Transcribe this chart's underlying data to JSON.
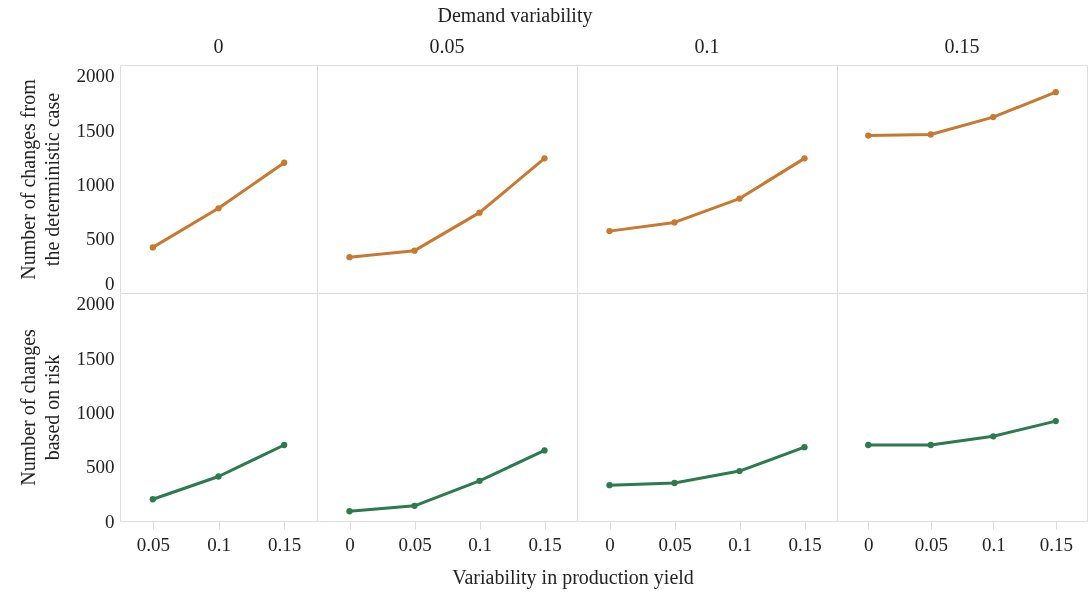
{
  "chart_data": [
    {
      "type": "line",
      "title": "0",
      "annotations": [
        "Demand variability"
      ],
      "ylabel": "Number of changes from\nthe deterministic case",
      "categories": [
        "0.05",
        "0.1",
        "0.15"
      ],
      "series": [
        {
          "color": "#c8782f",
          "values": [
            420,
            780,
            1200
          ]
        }
      ],
      "ylim": [
        0,
        2100
      ],
      "yticks": [
        0,
        500,
        1000,
        1500,
        2000
      ],
      "tick_labels": "y",
      "marker": "circle",
      "line_style": "solid"
    },
    {
      "type": "line",
      "title": "0.05",
      "categories": [
        "0",
        "0.05",
        "0.1",
        "0.15"
      ],
      "series": [
        {
          "color": "#c8782f",
          "values": [
            330,
            390,
            740,
            1240
          ]
        }
      ],
      "ylim": [
        0,
        2100
      ],
      "yticks": [
        0,
        500,
        1000,
        1500,
        2000
      ],
      "tick_labels": false,
      "marker": "circle",
      "line_style": "solid"
    },
    {
      "type": "line",
      "title": "0.1",
      "categories": [
        "0",
        "0.05",
        "0.1",
        "0.15"
      ],
      "series": [
        {
          "color": "#c8782f",
          "values": [
            570,
            650,
            870,
            1240
          ]
        }
      ],
      "ylim": [
        0,
        2100
      ],
      "yticks": [
        0,
        500,
        1000,
        1500,
        2000
      ],
      "tick_labels": false,
      "marker": "circle",
      "line_style": "solid"
    },
    {
      "type": "line",
      "title": "0.15",
      "categories": [
        "0",
        "0.05",
        "0.1",
        "0.15"
      ],
      "series": [
        {
          "color": "#c8782f",
          "values": [
            1450,
            1460,
            1620,
            1850
          ]
        }
      ],
      "ylim": [
        0,
        2100
      ],
      "yticks": [
        0,
        500,
        1000,
        1500,
        2000
      ],
      "tick_labels": false,
      "marker": "circle",
      "line_style": "solid"
    },
    {
      "type": "line",
      "annotations": [
        "Variability in production yield"
      ],
      "ylabel": "Number of changes\nbased on risk",
      "categories": [
        "0.05",
        "0.1",
        "0.15"
      ],
      "series": [
        {
          "color": "#2e7a50",
          "values": [
            200,
            410,
            700
          ]
        }
      ],
      "ylim": [
        0,
        2100
      ],
      "yticks": [
        0,
        500,
        1000,
        1500,
        2000
      ],
      "marker": "circle",
      "line_style": "solid"
    },
    {
      "type": "line",
      "categories": [
        "0",
        "0.05",
        "0.1",
        "0.15"
      ],
      "series": [
        {
          "color": "#2e7a50",
          "values": [
            90,
            140,
            370,
            650
          ]
        }
      ],
      "ylim": [
        0,
        2100
      ],
      "yticks": [
        0,
        500,
        1000,
        1500,
        2000
      ],
      "tick_labels": "x",
      "marker": "circle",
      "line_style": "solid"
    },
    {
      "type": "line",
      "categories": [
        "0",
        "0.05",
        "0.1",
        "0.15"
      ],
      "series": [
        {
          "color": "#2e7a50",
          "values": [
            330,
            350,
            460,
            680
          ]
        }
      ],
      "ylim": [
        0,
        2100
      ],
      "yticks": [
        0,
        500,
        1000,
        1500,
        2000
      ],
      "tick_labels": "x",
      "marker": "circle",
      "line_style": "solid"
    },
    {
      "type": "line",
      "categories": [
        "0",
        "0.05",
        "0.1",
        "0.15"
      ],
      "series": [
        {
          "color": "#2e7a50",
          "values": [
            700,
            700,
            780,
            920
          ]
        }
      ],
      "ylim": [
        0,
        2100
      ],
      "yticks": [
        0,
        500,
        1000,
        1500,
        2000
      ],
      "tick_labels": "x",
      "marker": "circle",
      "line_style": "solid"
    }
  ]
}
